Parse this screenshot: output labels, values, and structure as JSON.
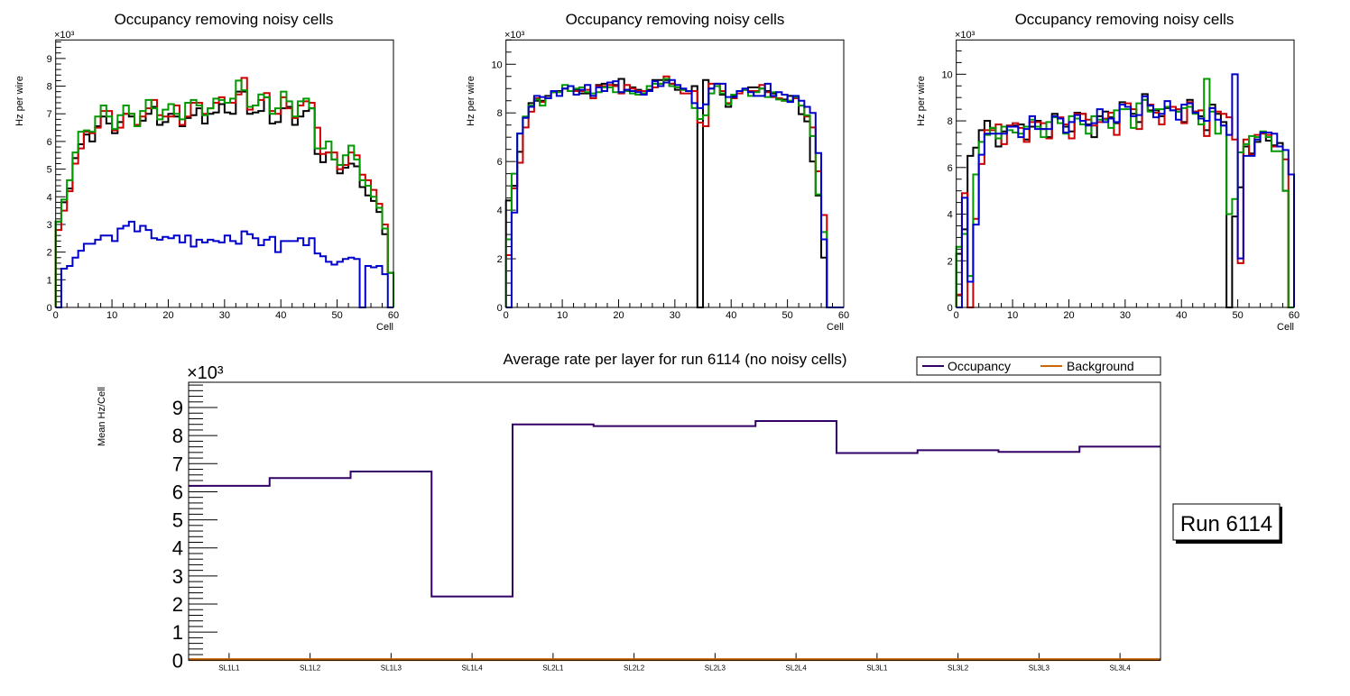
{
  "chart_data": [
    {
      "type": "step-histogram",
      "title": "Occupancy removing noisy cells",
      "xlabel": "Cell",
      "ylabel": "Hz per wire",
      "y_multiplier": "×10³",
      "xlim": [
        0,
        60
      ],
      "ylim": [
        0,
        9.67
      ],
      "xticks": [
        0,
        10,
        20,
        30,
        40,
        50,
        60
      ],
      "yticks": [
        0,
        1,
        2,
        3,
        4,
        5,
        6,
        7,
        8,
        9
      ],
      "bins": 60,
      "series": [
        {
          "name": "black",
          "color": "#000000",
          "values": [
            3.1,
            3.8,
            4.3,
            5.4,
            5.9,
            6.25,
            6.0,
            6.55,
            6.9,
            6.65,
            6.3,
            6.7,
            7.0,
            6.9,
            6.6,
            6.75,
            7.0,
            7.25,
            6.6,
            6.7,
            7.0,
            6.9,
            6.55,
            6.85,
            6.95,
            7.2,
            6.65,
            7.0,
            7.05,
            7.35,
            7.05,
            7.0,
            7.8,
            7.8,
            7.0,
            7.05,
            7.1,
            7.6,
            6.65,
            6.7,
            7.2,
            7.25,
            6.6,
            6.9,
            7.1,
            7.2,
            5.55,
            5.25,
            5.6,
            5.35,
            4.85,
            5.05,
            5.2,
            5.1,
            4.35,
            4.05,
            3.85,
            3.45,
            2.65,
            1.25
          ]
        },
        {
          "name": "red",
          "color": "#cc0000",
          "values": [
            2.8,
            3.5,
            4.2,
            5.2,
            5.75,
            6.35,
            6.3,
            6.5,
            7.1,
            7.1,
            6.4,
            6.5,
            7.0,
            7.0,
            6.6,
            6.9,
            7.2,
            7.5,
            6.95,
            6.9,
            6.9,
            7.3,
            6.6,
            6.9,
            7.4,
            7.4,
            7.0,
            7.2,
            7.4,
            7.6,
            7.4,
            7.4,
            7.7,
            8.3,
            7.15,
            7.3,
            7.5,
            7.75,
            7.1,
            7.0,
            7.6,
            7.2,
            6.85,
            7.3,
            7.45,
            7.4,
            6.5,
            5.55,
            5.6,
            5.6,
            5.0,
            5.15,
            5.6,
            5.5,
            4.8,
            4.6,
            4.25,
            3.75,
            3.0,
            1.25
          ]
        },
        {
          "name": "green",
          "color": "#009900",
          "values": [
            3.1,
            3.9,
            4.6,
            5.6,
            6.35,
            6.4,
            6.35,
            6.9,
            7.3,
            6.9,
            6.45,
            6.95,
            7.3,
            7.0,
            6.55,
            7.1,
            7.5,
            7.2,
            6.8,
            7.15,
            7.35,
            7.0,
            6.8,
            7.4,
            7.5,
            7.3,
            6.95,
            7.2,
            7.55,
            7.5,
            7.4,
            7.55,
            8.2,
            7.85,
            7.25,
            7.3,
            7.7,
            7.6,
            7.0,
            7.2,
            7.8,
            7.45,
            6.9,
            7.45,
            7.55,
            7.2,
            5.75,
            5.75,
            6.0,
            5.35,
            5.15,
            5.5,
            5.85,
            5.35,
            4.6,
            4.4,
            4.0,
            3.6,
            2.85,
            1.25
          ]
        },
        {
          "name": "blue",
          "color": "#0000cc",
          "values": [
            0,
            1.4,
            1.5,
            1.8,
            2.05,
            2.3,
            2.3,
            2.45,
            2.6,
            2.6,
            2.4,
            2.85,
            2.95,
            3.1,
            2.75,
            2.95,
            2.8,
            2.5,
            2.45,
            2.55,
            2.5,
            2.6,
            2.35,
            2.6,
            2.2,
            2.45,
            2.35,
            2.45,
            2.4,
            2.35,
            2.6,
            2.4,
            2.3,
            2.75,
            2.65,
            2.5,
            2.25,
            2.45,
            2.55,
            2.0,
            2.4,
            2.4,
            2.4,
            2.5,
            2.25,
            2.5,
            1.95,
            1.85,
            1.65,
            1.55,
            1.65,
            1.75,
            1.8,
            1.75,
            0,
            1.5,
            1.45,
            1.5,
            1.2,
            0
          ]
        }
      ]
    },
    {
      "type": "step-histogram",
      "title": "Occupancy removing noisy cells",
      "xlabel": "Cell",
      "ylabel": "Hz per wire",
      "y_multiplier": "×10³",
      "xlim": [
        0,
        60
      ],
      "ylim": [
        0,
        11.0
      ],
      "xticks": [
        0,
        10,
        20,
        30,
        40,
        50,
        60
      ],
      "yticks": [
        0,
        2,
        4,
        6,
        8,
        10
      ],
      "bins": 60,
      "series": [
        {
          "name": "black",
          "color": "#000000",
          "values": [
            4.4,
            5.0,
            6.4,
            7.8,
            8.4,
            8.5,
            8.5,
            8.7,
            8.85,
            8.9,
            9.0,
            8.9,
            8.95,
            8.8,
            8.8,
            8.7,
            9.15,
            9.2,
            9.25,
            9.15,
            9.4,
            8.95,
            9.05,
            8.95,
            8.8,
            8.95,
            9.35,
            9.35,
            9.35,
            9.2,
            8.95,
            8.95,
            8.9,
            9.1,
            0,
            9.35,
            9.0,
            9.1,
            8.75,
            8.25,
            8.7,
            8.9,
            8.95,
            9.05,
            9.05,
            9.0,
            8.9,
            8.8,
            8.6,
            8.55,
            8.7,
            8.6,
            7.95,
            7.65,
            6.0,
            4.6,
            2.05,
            0,
            0,
            0
          ]
        },
        {
          "name": "red",
          "color": "#cc0000",
          "values": [
            2.15,
            4.9,
            5.95,
            7.4,
            8.05,
            8.6,
            8.45,
            8.6,
            8.85,
            8.85,
            9.0,
            8.9,
            8.9,
            8.9,
            8.95,
            8.6,
            9.1,
            9.1,
            9.15,
            9.1,
            8.8,
            9.15,
            9.0,
            8.9,
            8.9,
            8.9,
            9.05,
            9.2,
            9.5,
            9.2,
            9.05,
            8.8,
            8.8,
            8.9,
            7.6,
            7.45,
            9.2,
            9.2,
            8.9,
            8.4,
            8.6,
            8.8,
            8.95,
            8.9,
            8.9,
            9.15,
            8.85,
            8.65,
            8.6,
            8.5,
            8.5,
            8.6,
            8.3,
            7.85,
            7.4,
            5.6,
            3.8,
            0,
            0,
            0
          ]
        },
        {
          "name": "green",
          "color": "#009900",
          "values": [
            2.8,
            5.5,
            7.15,
            7.85,
            8.3,
            8.55,
            8.3,
            8.6,
            8.85,
            8.85,
            9.15,
            8.9,
            9.0,
            9.05,
            8.85,
            8.8,
            8.85,
            9.05,
            9.05,
            8.85,
            8.85,
            8.9,
            8.8,
            8.75,
            8.8,
            9.1,
            9.2,
            9.2,
            9.4,
            9.1,
            9.05,
            8.95,
            8.9,
            8.2,
            7.75,
            7.9,
            8.8,
            9.1,
            8.8,
            8.35,
            8.75,
            8.9,
            8.95,
            8.7,
            8.85,
            9.0,
            8.65,
            8.85,
            8.55,
            8.5,
            8.5,
            8.65,
            8.3,
            7.9,
            7.05,
            4.65,
            3.1,
            0,
            0,
            0
          ]
        },
        {
          "name": "blue",
          "color": "#0000cc",
          "values": [
            0,
            3.9,
            7.15,
            7.8,
            8.25,
            8.7,
            8.65,
            8.6,
            8.9,
            8.7,
            9.0,
            9.1,
            8.75,
            8.95,
            9.15,
            8.7,
            9.05,
            8.9,
            9.25,
            9.3,
            8.85,
            8.95,
            8.9,
            8.85,
            8.75,
            8.9,
            9.3,
            9.1,
            9.25,
            9.35,
            9.15,
            9.0,
            8.9,
            8.4,
            8.2,
            8.35,
            9.0,
            9.2,
            9.2,
            8.65,
            8.65,
            8.9,
            9.0,
            8.85,
            8.7,
            8.7,
            9.2,
            8.7,
            8.85,
            8.75,
            8.45,
            8.7,
            8.5,
            8.25,
            8.0,
            6.35,
            2.8,
            0,
            0,
            0
          ]
        }
      ]
    },
    {
      "type": "step-histogram",
      "title": "Occupancy removing noisy cells",
      "xlabel": "Cell",
      "ylabel": "Hz per wire",
      "y_multiplier": "×10³",
      "xlim": [
        0,
        60
      ],
      "ylim": [
        0,
        11.47
      ],
      "xticks": [
        0,
        10,
        20,
        30,
        40,
        50,
        60
      ],
      "yticks": [
        0,
        2,
        4,
        6,
        8,
        10
      ],
      "bins": 60,
      "series": [
        {
          "name": "black",
          "color": "#000000",
          "values": [
            2.3,
            3.35,
            6.5,
            6.85,
            7.6,
            8.0,
            7.7,
            6.9,
            7.55,
            7.8,
            7.8,
            7.85,
            7.2,
            7.75,
            8.0,
            7.65,
            7.3,
            8.3,
            8.1,
            7.75,
            7.55,
            8.35,
            8.3,
            7.85,
            7.3,
            8.2,
            8.4,
            8.15,
            7.9,
            8.8,
            8.6,
            8.3,
            7.95,
            9.15,
            8.45,
            8.45,
            8.2,
            8.55,
            8.6,
            8.4,
            7.95,
            8.9,
            8.4,
            8.2,
            7.6,
            8.7,
            8.3,
            7.95,
            0,
            3.9,
            5.15,
            6.9,
            6.6,
            7.1,
            7.5,
            7.15,
            6.95,
            7.05,
            5.0,
            0
          ]
        },
        {
          "name": "red",
          "color": "#cc0000",
          "values": [
            0.55,
            4.9,
            0,
            3.8,
            6.15,
            7.6,
            7.6,
            7.85,
            7.0,
            7.8,
            7.9,
            7.7,
            7.1,
            7.95,
            7.95,
            7.9,
            7.25,
            8.2,
            8.15,
            7.85,
            7.25,
            8.3,
            8.3,
            8.05,
            7.8,
            7.95,
            8.1,
            8.35,
            7.4,
            8.7,
            8.75,
            8.5,
            7.65,
            8.9,
            8.7,
            8.35,
            7.85,
            8.6,
            8.6,
            8.5,
            7.9,
            8.8,
            8.4,
            8.45,
            7.35,
            8.55,
            8.4,
            8.3,
            8.15,
            7.2,
            1.9,
            7.2,
            6.55,
            7.4,
            7.45,
            7.4,
            6.9,
            6.9,
            6.35,
            0
          ]
        },
        {
          "name": "green",
          "color": "#009900",
          "values": [
            2.6,
            3.15,
            1.35,
            5.7,
            7.1,
            7.4,
            7.7,
            7.25,
            7.75,
            7.6,
            7.5,
            7.45,
            7.75,
            8.05,
            7.75,
            7.3,
            7.95,
            8.15,
            7.9,
            7.45,
            8.2,
            8.1,
            7.85,
            7.45,
            8.2,
            8.05,
            8.05,
            7.7,
            8.45,
            8.5,
            8.5,
            7.7,
            8.75,
            8.9,
            8.4,
            8.5,
            8.5,
            8.6,
            8.45,
            8.4,
            8.55,
            8.6,
            8.3,
            7.85,
            9.8,
            8.4,
            7.45,
            7.8,
            4.0,
            4.65,
            6.65,
            7.0,
            7.35,
            7.3,
            7.55,
            7.3,
            6.7,
            6.7,
            5.0,
            0
          ]
        },
        {
          "name": "blue",
          "color": "#0000cc",
          "values": [
            0,
            4.7,
            1.1,
            3.55,
            6.55,
            7.45,
            7.45,
            7.45,
            7.45,
            7.75,
            7.75,
            7.3,
            7.65,
            8.2,
            7.65,
            7.65,
            7.65,
            8.2,
            8.1,
            7.5,
            7.95,
            8.25,
            8.0,
            7.8,
            7.9,
            8.5,
            7.95,
            8.1,
            7.95,
            8.7,
            8.6,
            8.2,
            8.25,
            9.05,
            8.65,
            8.15,
            8.3,
            8.85,
            8.45,
            8.05,
            8.7,
            8.75,
            8.35,
            8.1,
            8.0,
            8.55,
            8.05,
            7.8,
            7.4,
            10.0,
            2.1,
            6.5,
            6.5,
            7.2,
            7.5,
            7.5,
            7.45,
            6.9,
            6.75,
            5.7
          ]
        }
      ]
    },
    {
      "type": "step-histogram",
      "title": "Average rate per layer for run 6114 (no noisy cells)",
      "xlabel": "",
      "ylabel": "Mean Hz/Cell",
      "y_multiplier": "×10³",
      "ylim": [
        0,
        9.9
      ],
      "yticks": [
        0,
        1,
        2,
        3,
        4,
        5,
        6,
        7,
        8,
        9
      ],
      "categories": [
        "SL1L1",
        "SL1L2",
        "SL1L3",
        "SL1L4",
        "SL2L1",
        "SL2L2",
        "SL2L3",
        "SL2L4",
        "SL3L1",
        "SL3L2",
        "SL3L3",
        "SL3L4"
      ],
      "legend_position": "top-right",
      "series": [
        {
          "name": "Occupancy",
          "color": "#330066",
          "values": [
            6.21,
            6.49,
            6.72,
            2.27,
            8.4,
            8.34,
            8.34,
            8.52,
            7.38,
            7.48,
            7.42,
            7.61
          ]
        },
        {
          "name": "Background",
          "color": "#cc6600",
          "values": [
            0.02,
            0.02,
            0.02,
            0.02,
            0.02,
            0.02,
            0.02,
            0.02,
            0.02,
            0.02,
            0.02,
            0.02
          ]
        }
      ],
      "annotation": "Run 6114"
    }
  ]
}
